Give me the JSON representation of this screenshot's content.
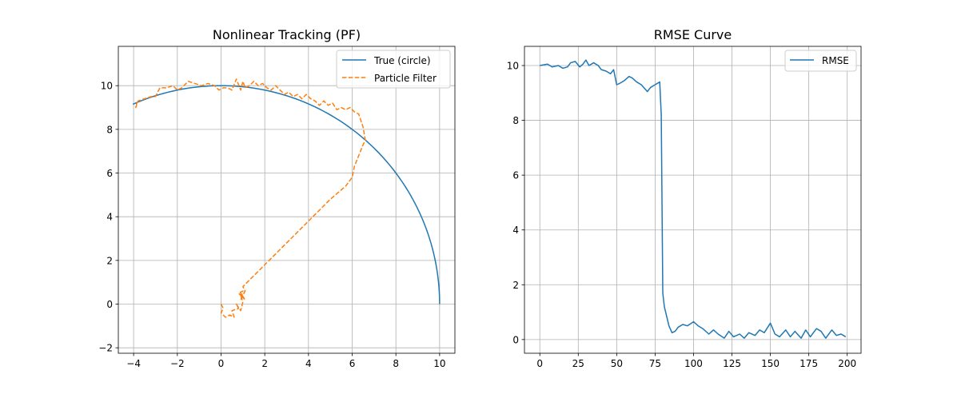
{
  "chart_data": [
    {
      "type": "line",
      "title": "Nonlinear Tracking (PF)",
      "xlabel": "",
      "ylabel": "",
      "xlim": [
        -4.7,
        10.7
      ],
      "ylim": [
        -2.25,
        11.8
      ],
      "xticks": [
        -4,
        -2,
        0,
        2,
        4,
        6,
        8,
        10
      ],
      "xtick_labels": [
        "−4",
        "−2",
        "0",
        "2",
        "4",
        "6",
        "8",
        "10"
      ],
      "yticks": [
        -2,
        0,
        2,
        4,
        6,
        8,
        10
      ],
      "ytick_labels": [
        "−2",
        "0",
        "2",
        "4",
        "6",
        "8",
        "10"
      ],
      "grid": true,
      "legend_position": "upper right",
      "series": [
        {
          "name": "True (circle)",
          "style": "solid",
          "color": "#1f77b4",
          "generator": "circle",
          "radius": 10,
          "theta_range_deg": [
            0,
            113.8
          ]
        },
        {
          "name": "Particle Filter",
          "style": "dashed",
          "color": "#ff7f0e",
          "x": [
            0.0,
            0.1,
            0.0,
            0.2,
            0.4,
            0.6,
            0.5,
            0.8,
            0.7,
            0.9,
            1.0,
            0.9,
            1.1,
            0.9,
            1.0,
            0.8,
            1.0,
            0.9,
            1.1,
            1.0,
            1.2,
            1.6,
            2.2,
            2.9,
            3.6,
            4.3,
            5.0,
            5.7,
            6.0,
            6.1,
            6.3,
            6.5,
            6.6,
            6.5,
            6.4,
            6.3,
            6.1,
            5.9,
            5.7,
            5.5,
            5.3,
            5.1,
            4.9,
            4.7,
            4.5,
            4.3,
            4.1,
            3.9,
            3.7,
            3.5,
            3.3,
            3.1,
            2.9,
            2.7,
            2.5,
            2.3,
            2.1,
            1.9,
            1.7,
            1.5,
            1.3,
            1.1,
            1.0,
            0.9,
            0.7,
            0.5,
            0.3,
            0.1,
            -0.1,
            -0.3,
            -0.6,
            -0.9,
            -1.2,
            -1.5,
            -1.8,
            -2.0,
            -2.2,
            -2.5,
            -2.8,
            -3.0,
            -3.2,
            -3.5,
            -3.8,
            -3.9,
            -3.9,
            -3.8
          ],
          "y": [
            0.0,
            -0.2,
            -0.4,
            -0.6,
            -0.5,
            -0.6,
            -0.3,
            -0.2,
            0.0,
            -0.3,
            0.1,
            0.4,
            0.2,
            0.5,
            0.3,
            0.5,
            0.6,
            0.2,
            0.6,
            0.8,
            1.0,
            1.4,
            2.0,
            2.7,
            3.4,
            4.1,
            4.8,
            5.4,
            5.8,
            6.3,
            6.8,
            7.3,
            7.5,
            8.1,
            8.4,
            8.7,
            8.8,
            9.0,
            8.9,
            9.0,
            8.9,
            9.2,
            9.1,
            9.3,
            9.1,
            9.3,
            9.4,
            9.6,
            9.4,
            9.6,
            9.5,
            9.7,
            9.6,
            9.8,
            10.0,
            9.8,
            9.9,
            10.1,
            10.0,
            10.2,
            10.0,
            9.9,
            10.2,
            9.8,
            10.3,
            9.8,
            9.9,
            9.9,
            9.8,
            10.0,
            10.1,
            10.0,
            10.1,
            10.2,
            9.9,
            9.8,
            10.0,
            9.9,
            9.9,
            9.5,
            9.5,
            9.4,
            9.3,
            9.0,
            9.1,
            9.3
          ]
        }
      ]
    },
    {
      "type": "line",
      "title": "RMSE Curve",
      "xlabel": "",
      "ylabel": "",
      "xlim": [
        -10,
        209
      ],
      "ylim": [
        -0.5,
        10.7
      ],
      "xticks": [
        0,
        25,
        50,
        75,
        100,
        125,
        150,
        175,
        200
      ],
      "xtick_labels": [
        "0",
        "25",
        "50",
        "75",
        "100",
        "125",
        "150",
        "175",
        "200"
      ],
      "yticks": [
        0,
        2,
        4,
        6,
        8,
        10
      ],
      "ytick_labels": [
        "0",
        "2",
        "4",
        "6",
        "8",
        "10"
      ],
      "grid": true,
      "legend_position": "upper right",
      "series": [
        {
          "name": "RMSE",
          "style": "solid",
          "color": "#1f77b4",
          "x": [
            0,
            5,
            8,
            12,
            15,
            18,
            20,
            23,
            26,
            28,
            30,
            32,
            35,
            38,
            40,
            43,
            46,
            48,
            50,
            52,
            55,
            58,
            60,
            63,
            66,
            70,
            72,
            75,
            78,
            79,
            80,
            81,
            84,
            86,
            88,
            90,
            93,
            96,
            100,
            103,
            106,
            110,
            113,
            116,
            120,
            123,
            126,
            130,
            133,
            136,
            140,
            143,
            146,
            150,
            153,
            156,
            160,
            163,
            166,
            170,
            173,
            176,
            180,
            183,
            186,
            190,
            193,
            196,
            199
          ],
          "y": [
            10.0,
            10.05,
            9.95,
            10.0,
            9.9,
            9.95,
            10.1,
            10.15,
            9.95,
            10.05,
            10.2,
            10.0,
            10.1,
            10.0,
            9.85,
            9.8,
            9.7,
            9.85,
            9.3,
            9.35,
            9.45,
            9.6,
            9.55,
            9.4,
            9.3,
            9.05,
            9.2,
            9.3,
            9.4,
            8.2,
            1.7,
            1.2,
            0.5,
            0.25,
            0.3,
            0.45,
            0.55,
            0.5,
            0.65,
            0.5,
            0.4,
            0.2,
            0.35,
            0.2,
            0.05,
            0.3,
            0.1,
            0.2,
            0.05,
            0.25,
            0.15,
            0.35,
            0.25,
            0.6,
            0.2,
            0.1,
            0.35,
            0.1,
            0.3,
            0.05,
            0.35,
            0.1,
            0.4,
            0.3,
            0.05,
            0.35,
            0.15,
            0.2,
            0.1
          ]
        }
      ]
    }
  ]
}
